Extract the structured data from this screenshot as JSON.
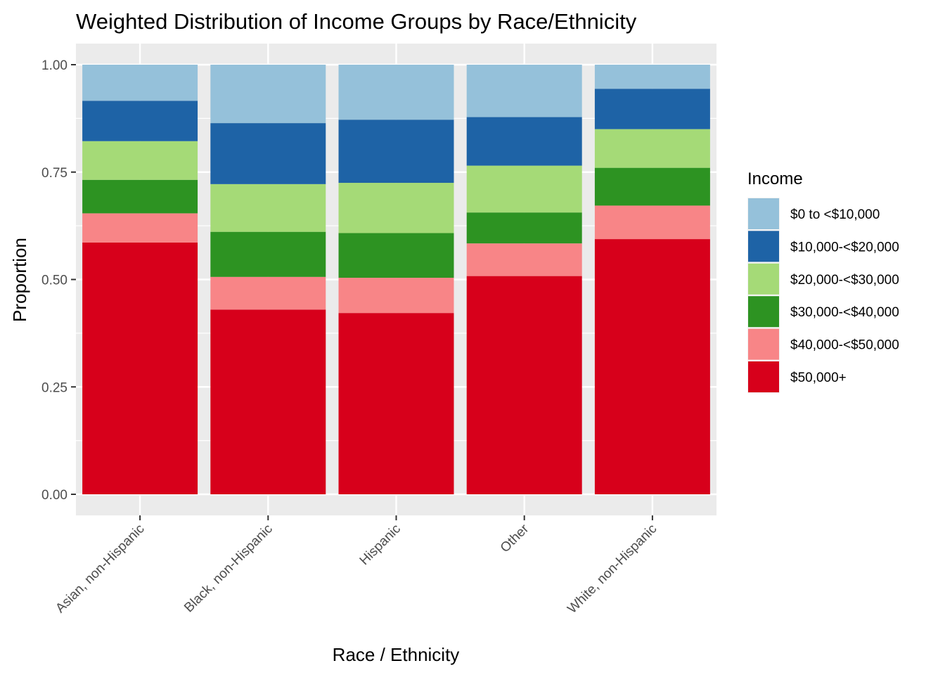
{
  "chart_data": {
    "type": "bar",
    "stacked": true,
    "title": "Weighted Distribution of Income Groups by Race/Ethnicity",
    "xlabel": "Race / Ethnicity",
    "ylabel": "Proportion",
    "ylim": [
      0,
      1
    ],
    "yticks": [
      "0.00",
      "0.25",
      "0.50",
      "0.75",
      "1.00"
    ],
    "categories": [
      "Asian, non-Hispanic",
      "Black, non-Hispanic",
      "Hispanic",
      "Other",
      "White, non-Hispanic"
    ],
    "legend": {
      "title": "Income",
      "position": "right"
    },
    "grid": true,
    "series": [
      {
        "name": "$50,000+",
        "color": "#d7001b",
        "values": [
          0.586,
          0.43,
          0.422,
          0.508,
          0.594
        ]
      },
      {
        "name": "$40,000-<$50,000",
        "color": "#f88587",
        "values": [
          0.068,
          0.076,
          0.082,
          0.076,
          0.078
        ]
      },
      {
        "name": "$30,000-<$40,000",
        "color": "#2d9322",
        "values": [
          0.078,
          0.105,
          0.104,
          0.072,
          0.088
        ]
      },
      {
        "name": "$20,000-<$30,000",
        "color": "#a5da77",
        "values": [
          0.09,
          0.111,
          0.117,
          0.109,
          0.09
        ]
      },
      {
        "name": "$10,000-<$20,000",
        "color": "#1e63a6",
        "values": [
          0.094,
          0.142,
          0.147,
          0.113,
          0.094
        ]
      },
      {
        "name": "$0 to <$10,000",
        "color": "#95c1da",
        "values": [
          0.084,
          0.136,
          0.128,
          0.122,
          0.056
        ]
      }
    ]
  }
}
